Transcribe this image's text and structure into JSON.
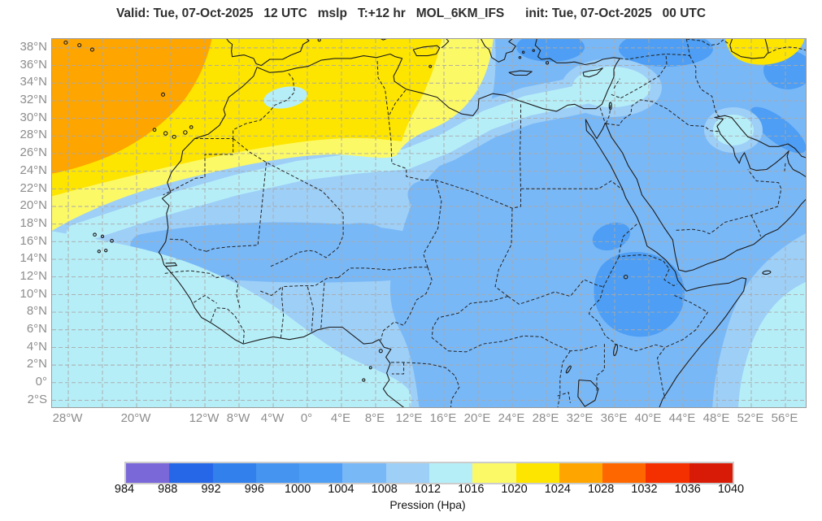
{
  "header": {
    "title": "Valid: Tue, 07-Oct-2025   12 UTC   mslp   T:+12 hr   MOL_6KM_IFS      init: Tue, 07-Oct-2025   00 UTC",
    "valid_date": "Tue, 07-Oct-2025",
    "valid_time": "12 UTC",
    "variable": "mslp",
    "lead_time": "T:+12 hr",
    "model": "MOL_6KM_IFS",
    "init_date": "Tue, 07-Oct-2025",
    "init_time": "00 UTC"
  },
  "axes": {
    "x_ticks": [
      {
        "label": "28°W",
        "lon": -28
      },
      {
        "label": "20°W",
        "lon": -20
      },
      {
        "label": "12°W",
        "lon": -12
      },
      {
        "label": "8°W",
        "lon": -8
      },
      {
        "label": "4°W",
        "lon": -4
      },
      {
        "label": "0°",
        "lon": 0
      },
      {
        "label": "4°E",
        "lon": 4
      },
      {
        "label": "8°E",
        "lon": 8
      },
      {
        "label": "12°E",
        "lon": 12
      },
      {
        "label": "16°E",
        "lon": 16
      },
      {
        "label": "20°E",
        "lon": 20
      },
      {
        "label": "24°E",
        "lon": 24
      },
      {
        "label": "28°E",
        "lon": 28
      },
      {
        "label": "32°E",
        "lon": 32
      },
      {
        "label": "36°E",
        "lon": 36
      },
      {
        "label": "40°E",
        "lon": 40
      },
      {
        "label": "44°E",
        "lon": 44
      },
      {
        "label": "48°E",
        "lon": 48
      },
      {
        "label": "52°E",
        "lon": 52
      },
      {
        "label": "56°E",
        "lon": 56
      }
    ],
    "y_ticks": [
      {
        "label": "38°N",
        "lat": 38
      },
      {
        "label": "36°N",
        "lat": 36
      },
      {
        "label": "34°N",
        "lat": 34
      },
      {
        "label": "32°N",
        "lat": 32
      },
      {
        "label": "30°N",
        "lat": 30
      },
      {
        "label": "28°N",
        "lat": 28
      },
      {
        "label": "26°N",
        "lat": 26
      },
      {
        "label": "24°N",
        "lat": 24
      },
      {
        "label": "22°N",
        "lat": 22
      },
      {
        "label": "20°N",
        "lat": 20
      },
      {
        "label": "18°N",
        "lat": 18
      },
      {
        "label": "16°N",
        "lat": 16
      },
      {
        "label": "14°N",
        "lat": 14
      },
      {
        "label": "12°N",
        "lat": 12
      },
      {
        "label": "10°N",
        "lat": 10
      },
      {
        "label": "8°N",
        "lat": 8
      },
      {
        "label": "6°N",
        "lat": 6
      },
      {
        "label": "4°N",
        "lat": 4
      },
      {
        "label": "2°N",
        "lat": 2
      },
      {
        "label": "0°",
        "lat": 0
      },
      {
        "label": "2°S",
        "lat": -2
      }
    ],
    "x_gridline_lons": [
      -28,
      -24,
      -20,
      -16,
      -12,
      -8,
      -4,
      0,
      4,
      8,
      12,
      16,
      20,
      24,
      28,
      32,
      36,
      40,
      44,
      48,
      52,
      56
    ],
    "y_gridline_lats": [
      38,
      36,
      34,
      32,
      30,
      28,
      26,
      24,
      22,
      20,
      18,
      16,
      14,
      12,
      10,
      8,
      6,
      4,
      2,
      0,
      -2
    ]
  },
  "colorbar": {
    "label": "Pression (Hpa)",
    "ticks": [
      984,
      988,
      992,
      996,
      1000,
      1004,
      1008,
      1012,
      1016,
      1020,
      1024,
      1028,
      1032,
      1036,
      1040
    ],
    "colors": [
      "#7A68D9",
      "#2667E8",
      "#3180EC",
      "#4594F0",
      "#4D9EF4",
      "#79B8F7",
      "#9ECFF7",
      "#B6EEF8",
      "#FCF966",
      "#FDE500",
      "#FEA500",
      "#FE6600",
      "#F42F00",
      "#D81B06"
    ]
  },
  "chart_data": {
    "type": "heatmap",
    "variable": "mean sea level pressure (mslp)",
    "units": "hPa",
    "valid": "Tue, 07-Oct-2025 12 UTC",
    "init": "Tue, 07-Oct-2025 00 UTC",
    "lead_hours": 12,
    "model": "MOL_6KM_IFS",
    "lon_range_deg": [
      -30,
      58.4
    ],
    "lat_range_deg": [
      -2.8,
      39
    ],
    "levels_hpa": [
      984,
      988,
      992,
      996,
      1000,
      1004,
      1008,
      1012,
      1016,
      1020,
      1024,
      1028,
      1032,
      1036,
      1040
    ],
    "level_colors": [
      "#7A68D9",
      "#2667E8",
      "#3180EC",
      "#4594F0",
      "#4D9EF4",
      "#79B8F7",
      "#9ECFF7",
      "#B6EEF8",
      "#FCF966",
      "#FDE500",
      "#FEA500",
      "#FE6600",
      "#F42F00",
      "#D81B06"
    ],
    "features": [
      "Anticyclone 1024-1028 hPa (orange) over the NE Atlantic near the Azores",
      "Ridge 1020-1024 hPa (yellow) across Morocco, northern Algeria, Tunisia and Sicily",
      "Yellow 1020-1024 hPa patch at the top-right corner near the south Caspian",
      "1016-1020 hPa (pale yellow) band bordering the ridge over NW Africa",
      "1012-1016 hPa (pale cyan) over the tropical Atlantic, Gulf of Guinea, central Algeria-Libya coast, around Cyprus, Persian Gulf head and SE Indian Ocean corner",
      "1008-1012 hPa (light blue) over most of the Sahara and West Africa",
      "1004-1008 hPa (medium blue) over Egypt, Middle East, Sudan, Congo basin and Horn region",
      "1000-1004 hPa low (darker blue) over the Ethiopian Highlands and Anatolia/Aegean patches"
    ],
    "grid": "dashed gray graticule every 4° longitude and 2° latitude",
    "legend_position": "bottom horizontal colorbar"
  }
}
